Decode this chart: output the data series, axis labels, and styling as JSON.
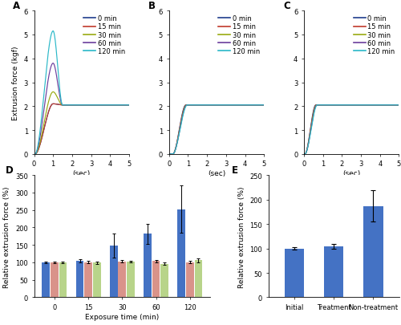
{
  "line_colors": {
    "0 min": "#1f3d8c",
    "15 min": "#c0392b",
    "30 min": "#9aaa10",
    "60 min": "#6b3d9c",
    "120 min": "#2ab8c8"
  },
  "line_labels": [
    "0 min",
    "15 min",
    "30 min",
    "60 min",
    "120 min"
  ],
  "panel_A": {
    "peak_heights": [
      2.1,
      2.1,
      2.6,
      3.8,
      5.15
    ],
    "plateau": 2.05,
    "peak_time": 1.0
  },
  "panel_B": {
    "plateau": 2.05,
    "rise_ends": [
      0.88,
      0.9,
      0.92,
      0.94,
      0.96
    ]
  },
  "panel_C": {
    "plateau": 2.05,
    "rise_ends": [
      0.62,
      0.64,
      0.66,
      0.68,
      0.7
    ]
  },
  "bar_blue": "#4472c4",
  "bar_red": "#d9938a",
  "bar_green": "#b8d48a",
  "panel_D": {
    "x_labels": [
      "0",
      "15",
      "30",
      "60",
      "120"
    ],
    "blue_vals": [
      100,
      105,
      148,
      182,
      252
    ],
    "blue_errs": [
      3,
      5,
      35,
      28,
      68
    ],
    "red_vals": [
      100,
      101,
      103,
      104,
      101
    ],
    "red_errs": [
      2,
      3,
      4,
      3,
      3
    ],
    "green_vals": [
      100,
      99,
      102,
      96,
      106
    ],
    "green_errs": [
      2,
      3,
      3,
      4,
      5
    ],
    "ylim": [
      0,
      350
    ],
    "yticks": [
      0,
      50,
      100,
      150,
      200,
      250,
      300,
      350
    ],
    "xlabel": "Exposure time (min)",
    "ylabel": "Relative extrusion force (%)"
  },
  "panel_E": {
    "x_labels": [
      "Initial",
      "Treatment",
      "Non-treatment"
    ],
    "vals": [
      100,
      105,
      187
    ],
    "errs": [
      2,
      5,
      32
    ],
    "ylim": [
      0,
      250
    ],
    "yticks": [
      0,
      50,
      100,
      150,
      200,
      250
    ],
    "ylabel": "Relative extrusion force (%)"
  },
  "bg_color": "#ffffff",
  "axis_label_fontsize": 6.5,
  "tick_fontsize": 6.0,
  "legend_fontsize": 6.0,
  "panel_label_fontsize": 8.5
}
